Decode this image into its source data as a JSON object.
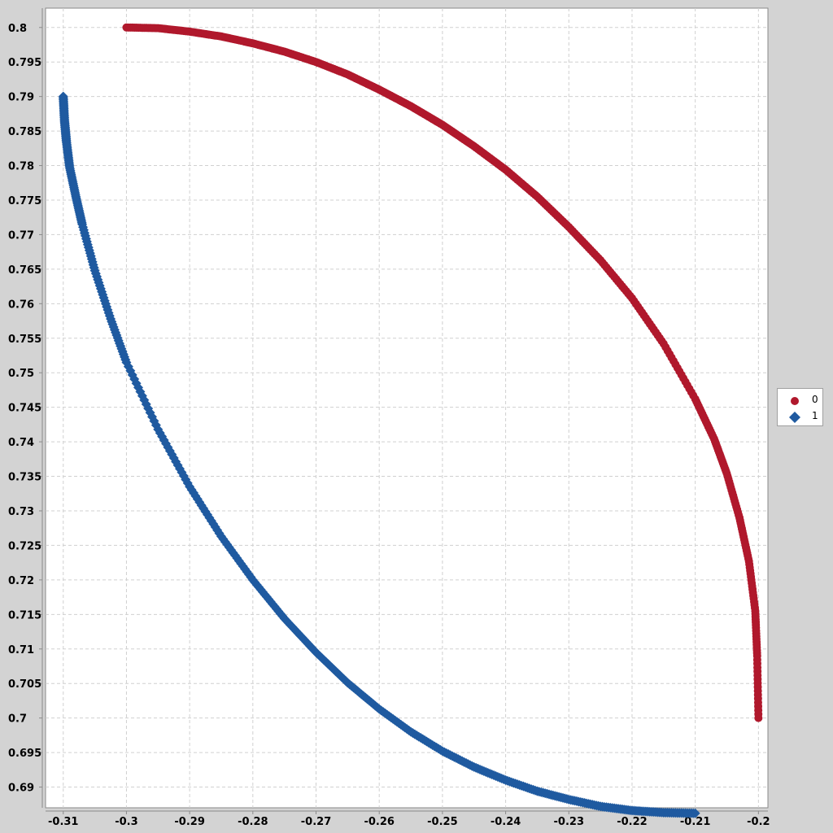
{
  "chart_data": {
    "type": "scatter",
    "title": "",
    "xlabel": "",
    "ylabel": "",
    "xlim": [
      -0.3128,
      -0.1985
    ],
    "ylim": [
      0.687,
      0.8028
    ],
    "x_ticks": [
      -0.31,
      -0.3,
      -0.29,
      -0.28,
      -0.27,
      -0.26,
      -0.25,
      -0.24,
      -0.23,
      -0.22,
      -0.21,
      -0.2
    ],
    "x_tick_labels": [
      "-0.31",
      "-0.3",
      "-0.29",
      "-0.28",
      "-0.27",
      "-0.26",
      "-0.25",
      "-0.24",
      "-0.23",
      "-0.22",
      "-0.21",
      "-0.2"
    ],
    "y_ticks": [
      0.69,
      0.695,
      0.7,
      0.705,
      0.71,
      0.715,
      0.72,
      0.725,
      0.73,
      0.735,
      0.74,
      0.745,
      0.75,
      0.755,
      0.76,
      0.765,
      0.77,
      0.775,
      0.78,
      0.785,
      0.79,
      0.795,
      0.8
    ],
    "y_tick_labels": [
      "0.69",
      "0.695",
      "0.7",
      "0.705",
      "0.71",
      "0.715",
      "0.72",
      "0.725",
      "0.73",
      "0.735",
      "0.74",
      "0.745",
      "0.75",
      "0.755",
      "0.76",
      "0.765",
      "0.77",
      "0.775",
      "0.78",
      "0.785",
      "0.79",
      "0.795",
      "0.8"
    ],
    "grid": true,
    "legend_position": "right",
    "series": [
      {
        "name": "0",
        "marker": "circle",
        "color": "#b0182c",
        "x": [
          -0.3,
          -0.295,
          -0.29,
          -0.285,
          -0.28,
          -0.275,
          -0.27,
          -0.265,
          -0.26,
          -0.255,
          -0.25,
          -0.245,
          -0.24,
          -0.235,
          -0.23,
          -0.225,
          -0.22,
          -0.215,
          -0.21,
          -0.207,
          -0.205,
          -0.203,
          -0.2015,
          -0.2005,
          -0.2002,
          -0.2
        ],
        "y": [
          0.8,
          0.7999,
          0.7994,
          0.7987,
          0.7977,
          0.7965,
          0.795,
          0.7932,
          0.791,
          0.7886,
          0.7859,
          0.7828,
          0.7794,
          0.7755,
          0.7711,
          0.7663,
          0.7608,
          0.7542,
          0.7462,
          0.7404,
          0.7354,
          0.729,
          0.7227,
          0.7155,
          0.709,
          0.7
        ]
      },
      {
        "name": "1",
        "marker": "diamond",
        "color": "#1f5aa0",
        "x": [
          -0.31,
          -0.3098,
          -0.3095,
          -0.309,
          -0.308,
          -0.307,
          -0.305,
          -0.3025,
          -0.3,
          -0.295,
          -0.29,
          -0.285,
          -0.28,
          -0.275,
          -0.27,
          -0.265,
          -0.26,
          -0.255,
          -0.25,
          -0.245,
          -0.24,
          -0.235,
          -0.23,
          -0.225,
          -0.22,
          -0.215,
          -0.21
        ],
        "y": [
          0.79,
          0.7865,
          0.7835,
          0.7798,
          0.7755,
          0.7715,
          0.7648,
          0.7578,
          0.7515,
          0.7418,
          0.7335,
          0.7263,
          0.72,
          0.7144,
          0.7095,
          0.7051,
          0.7013,
          0.698,
          0.6952,
          0.6929,
          0.691,
          0.6894,
          0.6882,
          0.6872,
          0.6866,
          0.6863,
          0.6862
        ]
      }
    ]
  }
}
